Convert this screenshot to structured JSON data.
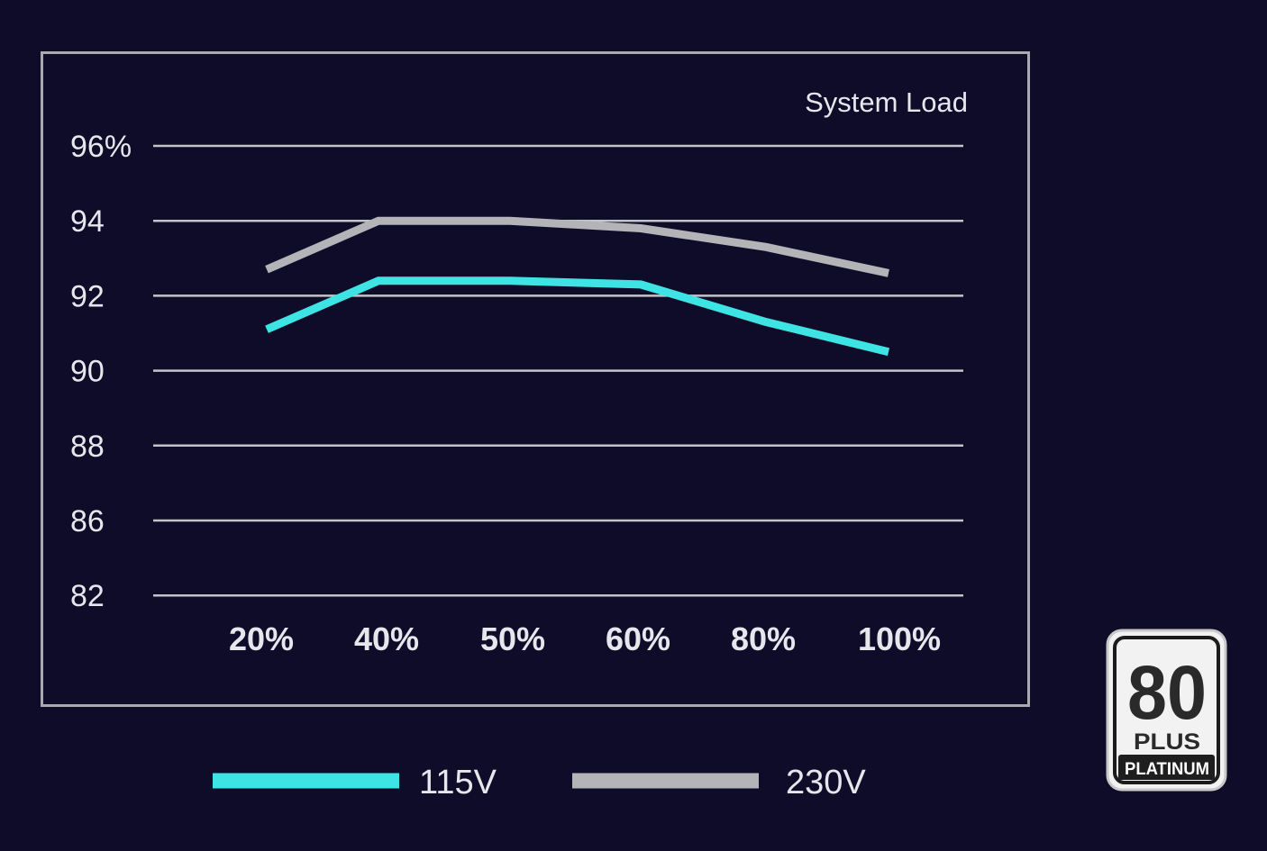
{
  "chart_data": {
    "type": "line",
    "title": "System Load",
    "categories": [
      "20%",
      "40%",
      "50%",
      "60%",
      "80%",
      "100%"
    ],
    "y_tick_labels": [
      "82",
      "86",
      "88",
      "90",
      "92",
      "94",
      "96%"
    ],
    "series": [
      {
        "name": "115V",
        "color": "#3ee4e4",
        "values": [
          91.1,
          92.4,
          92.4,
          92.3,
          91.3,
          90.5
        ]
      },
      {
        "name": "230V",
        "color": "#b4b4b8",
        "values": [
          92.7,
          94.0,
          94.0,
          93.8,
          93.3,
          92.6
        ]
      }
    ],
    "grid": true,
    "legend": "bottom"
  },
  "badge": {
    "number": "80",
    "plus": "PLUS",
    "tier": "PLATINUM"
  },
  "colors": {
    "background": "#0e0c28",
    "frame": "#a9a9ae",
    "grid": "#c4c4c8"
  }
}
